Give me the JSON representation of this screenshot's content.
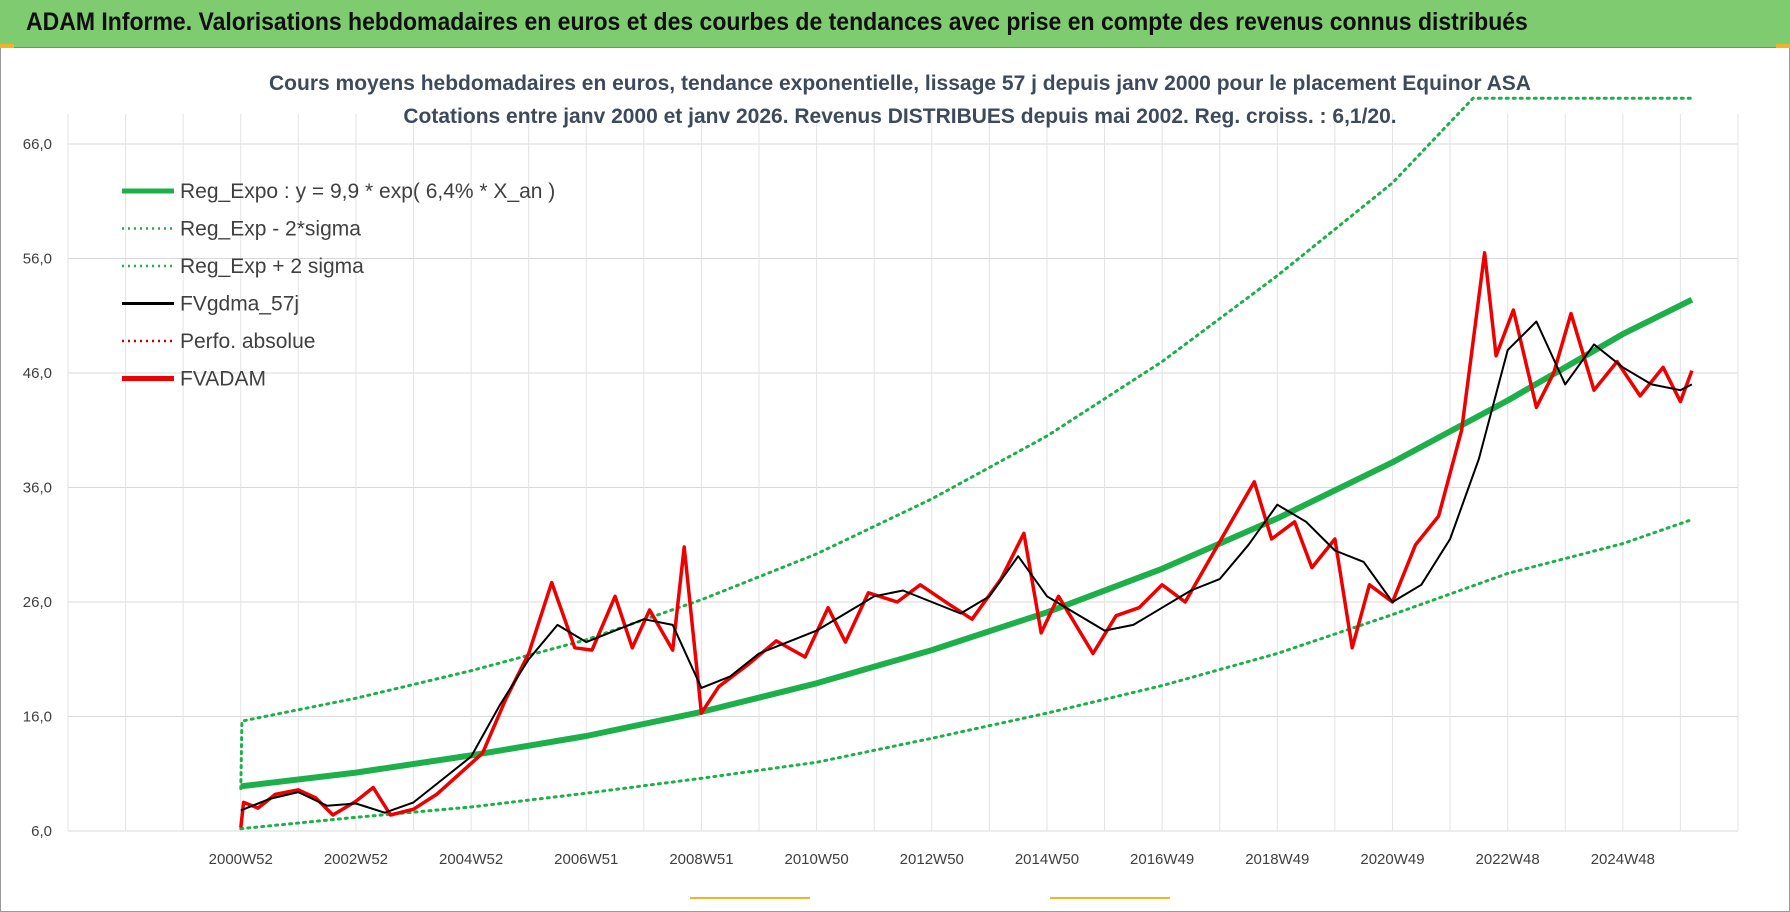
{
  "banner": {
    "title": "ADAM Informe. Valorisations hebdomadaires en euros et des courbes de tendances avec prise en compte des revenus connus distribués"
  },
  "colors": {
    "banner_bg": "#7ecb70",
    "trend": "#1db04a",
    "band": "#1db04a",
    "smoothed": "#000000",
    "price": "#ee0000",
    "perf": "#cc0000"
  },
  "chart_data": {
    "type": "line",
    "title_line1": "Cours moyens hebdomadaires en euros, tendance exponentielle, lissage 57 j depuis janv 2000  pour le placement Equinor ASA",
    "title_line2": "Cotations entre janv 2000 et janv 2026. Revenus DISTRIBUES depuis mai 2002. Reg. croiss. : 6,1/20.",
    "y_ticks": [
      "6,0",
      "16,0",
      "26,0",
      "36,0",
      "46,0",
      "56,0",
      "66,0"
    ],
    "ylim": [
      6,
      66
    ],
    "x_tick_labels": [
      "2000W52",
      "2002W52",
      "2004W52",
      "2006W51",
      "2008W51",
      "2010W50",
      "2012W50",
      "2014W50",
      "2016W49",
      "2018W49",
      "2020W49",
      "2022W48",
      "2024W48"
    ],
    "x_tick_years": [
      2000.0,
      2002.0,
      2004.0,
      2006.0,
      2008.0,
      2010.0,
      2012.0,
      2014.0,
      2016.0,
      2018.0,
      2020.0,
      2022.0,
      2024.0
    ],
    "xlim": [
      1997.0,
      2026.0
    ],
    "legend": [
      {
        "label": "Reg_Expo : y = 9,9 * exp( 6,4% *  X_an )",
        "style": "solid-thick",
        "color": "#1db04a"
      },
      {
        "label": "Reg_Exp - 2*sigma",
        "style": "dotted",
        "color": "#1db04a"
      },
      {
        "label": "Reg_Exp + 2 sigma",
        "style": "dotted",
        "color": "#1db04a"
      },
      {
        "label": "FVgdma_57j",
        "style": "solid",
        "color": "#000000"
      },
      {
        "label": "Perfo. absolue",
        "style": "dotted",
        "color": "#cc0000"
      },
      {
        "label": "FVADAM",
        "style": "solid-thick",
        "color": "#ee0000"
      }
    ],
    "trend_points": [
      {
        "x": 2000.0,
        "y": 9.9
      },
      {
        "x": 2002.0,
        "y": 11.1
      },
      {
        "x": 2004.0,
        "y": 12.6
      },
      {
        "x": 2006.0,
        "y": 14.3
      },
      {
        "x": 2008.0,
        "y": 16.4
      },
      {
        "x": 2010.0,
        "y": 18.9
      },
      {
        "x": 2012.0,
        "y": 21.8
      },
      {
        "x": 2014.0,
        "y": 25.1
      },
      {
        "x": 2016.0,
        "y": 28.9
      },
      {
        "x": 2018.0,
        "y": 33.3
      },
      {
        "x": 2020.0,
        "y": 38.2
      },
      {
        "x": 2022.0,
        "y": 43.6
      },
      {
        "x": 2024.0,
        "y": 49.4
      },
      {
        "x": 2025.2,
        "y": 52.4
      }
    ],
    "upper_band_points": [
      {
        "x": 2000.0,
        "y": 9.7
      },
      {
        "x": 2000.02,
        "y": 15.6
      },
      {
        "x": 2002.0,
        "y": 17.6
      },
      {
        "x": 2004.0,
        "y": 20.0
      },
      {
        "x": 2006.0,
        "y": 22.7
      },
      {
        "x": 2008.0,
        "y": 26.2
      },
      {
        "x": 2010.0,
        "y": 30.2
      },
      {
        "x": 2012.0,
        "y": 35.0
      },
      {
        "x": 2014.0,
        "y": 40.5
      },
      {
        "x": 2016.0,
        "y": 47.0
      },
      {
        "x": 2018.0,
        "y": 54.5
      },
      {
        "x": 2020.0,
        "y": 62.6
      },
      {
        "x": 2021.4,
        "y": 70.0
      },
      {
        "x": 2025.2,
        "y": 70.0
      }
    ],
    "lower_band_points": [
      {
        "x": 2000.0,
        "y": 6.2
      },
      {
        "x": 2002.0,
        "y": 7.2
      },
      {
        "x": 2004.0,
        "y": 8.1
      },
      {
        "x": 2006.0,
        "y": 9.3
      },
      {
        "x": 2008.0,
        "y": 10.6
      },
      {
        "x": 2010.0,
        "y": 12.0
      },
      {
        "x": 2012.0,
        "y": 14.1
      },
      {
        "x": 2014.0,
        "y": 16.3
      },
      {
        "x": 2016.0,
        "y": 18.7
      },
      {
        "x": 2018.0,
        "y": 21.5
      },
      {
        "x": 2020.0,
        "y": 24.9
      },
      {
        "x": 2022.0,
        "y": 28.5
      },
      {
        "x": 2024.0,
        "y": 31.1
      },
      {
        "x": 2025.2,
        "y": 33.2
      }
    ],
    "smoothed_points": [
      {
        "x": 2000.0,
        "y": 7.8
      },
      {
        "x": 2000.5,
        "y": 8.8
      },
      {
        "x": 2001.0,
        "y": 9.4
      },
      {
        "x": 2001.5,
        "y": 8.2
      },
      {
        "x": 2002.0,
        "y": 8.4
      },
      {
        "x": 2002.5,
        "y": 7.6
      },
      {
        "x": 2003.0,
        "y": 8.5
      },
      {
        "x": 2003.5,
        "y": 10.5
      },
      {
        "x": 2004.0,
        "y": 12.5
      },
      {
        "x": 2004.5,
        "y": 17.0
      },
      {
        "x": 2005.0,
        "y": 21.0
      },
      {
        "x": 2005.5,
        "y": 24.0
      },
      {
        "x": 2006.0,
        "y": 22.5
      },
      {
        "x": 2006.5,
        "y": 23.5
      },
      {
        "x": 2007.0,
        "y": 24.5
      },
      {
        "x": 2007.5,
        "y": 24.0
      },
      {
        "x": 2008.0,
        "y": 18.5
      },
      {
        "x": 2008.5,
        "y": 19.5
      },
      {
        "x": 2009.0,
        "y": 21.5
      },
      {
        "x": 2009.5,
        "y": 22.5
      },
      {
        "x": 2010.0,
        "y": 23.5
      },
      {
        "x": 2010.5,
        "y": 25.0
      },
      {
        "x": 2011.0,
        "y": 26.5
      },
      {
        "x": 2011.5,
        "y": 27.0
      },
      {
        "x": 2012.0,
        "y": 26.0
      },
      {
        "x": 2012.5,
        "y": 25.0
      },
      {
        "x": 2013.0,
        "y": 26.5
      },
      {
        "x": 2013.5,
        "y": 30.0
      },
      {
        "x": 2014.0,
        "y": 26.5
      },
      {
        "x": 2014.5,
        "y": 25.0
      },
      {
        "x": 2015.0,
        "y": 23.5
      },
      {
        "x": 2015.5,
        "y": 24.0
      },
      {
        "x": 2016.0,
        "y": 25.5
      },
      {
        "x": 2016.5,
        "y": 27.0
      },
      {
        "x": 2017.0,
        "y": 28.0
      },
      {
        "x": 2017.5,
        "y": 31.0
      },
      {
        "x": 2018.0,
        "y": 34.5
      },
      {
        "x": 2018.5,
        "y": 33.0
      },
      {
        "x": 2019.0,
        "y": 30.5
      },
      {
        "x": 2019.5,
        "y": 29.5
      },
      {
        "x": 2020.0,
        "y": 26.0
      },
      {
        "x": 2020.5,
        "y": 27.5
      },
      {
        "x": 2021.0,
        "y": 31.5
      },
      {
        "x": 2021.5,
        "y": 38.5
      },
      {
        "x": 2022.0,
        "y": 48.0
      },
      {
        "x": 2022.5,
        "y": 50.5
      },
      {
        "x": 2023.0,
        "y": 45.0
      },
      {
        "x": 2023.5,
        "y": 48.5
      },
      {
        "x": 2024.0,
        "y": 46.5
      },
      {
        "x": 2024.5,
        "y": 45.0
      },
      {
        "x": 2025.0,
        "y": 44.5
      },
      {
        "x": 2025.2,
        "y": 45.0
      }
    ],
    "price_points": [
      {
        "x": 2000.0,
        "y": 6.3
      },
      {
        "x": 2000.05,
        "y": 8.5
      },
      {
        "x": 2000.3,
        "y": 8.0
      },
      {
        "x": 2000.6,
        "y": 9.2
      },
      {
        "x": 2001.0,
        "y": 9.6
      },
      {
        "x": 2001.3,
        "y": 8.9
      },
      {
        "x": 2001.6,
        "y": 7.4
      },
      {
        "x": 2002.0,
        "y": 8.6
      },
      {
        "x": 2002.3,
        "y": 9.8
      },
      {
        "x": 2002.6,
        "y": 7.4
      },
      {
        "x": 2003.0,
        "y": 7.9
      },
      {
        "x": 2003.4,
        "y": 9.2
      },
      {
        "x": 2003.8,
        "y": 11.0
      },
      {
        "x": 2004.2,
        "y": 12.8
      },
      {
        "x": 2004.6,
        "y": 17.5
      },
      {
        "x": 2005.0,
        "y": 21.5
      },
      {
        "x": 2005.4,
        "y": 27.7
      },
      {
        "x": 2005.8,
        "y": 22.0
      },
      {
        "x": 2006.1,
        "y": 21.8
      },
      {
        "x": 2006.5,
        "y": 26.5
      },
      {
        "x": 2006.8,
        "y": 22.0
      },
      {
        "x": 2007.1,
        "y": 25.3
      },
      {
        "x": 2007.5,
        "y": 21.8
      },
      {
        "x": 2007.7,
        "y": 30.8
      },
      {
        "x": 2008.0,
        "y": 16.3
      },
      {
        "x": 2008.3,
        "y": 18.6
      },
      {
        "x": 2008.8,
        "y": 20.5
      },
      {
        "x": 2009.3,
        "y": 22.6
      },
      {
        "x": 2009.8,
        "y": 21.2
      },
      {
        "x": 2010.2,
        "y": 25.5
      },
      {
        "x": 2010.5,
        "y": 22.5
      },
      {
        "x": 2010.9,
        "y": 26.8
      },
      {
        "x": 2011.4,
        "y": 26.0
      },
      {
        "x": 2011.8,
        "y": 27.5
      },
      {
        "x": 2012.3,
        "y": 25.8
      },
      {
        "x": 2012.7,
        "y": 24.5
      },
      {
        "x": 2013.2,
        "y": 28.0
      },
      {
        "x": 2013.6,
        "y": 32.0
      },
      {
        "x": 2013.9,
        "y": 23.3
      },
      {
        "x": 2014.2,
        "y": 26.5
      },
      {
        "x": 2014.5,
        "y": 24.0
      },
      {
        "x": 2014.8,
        "y": 21.5
      },
      {
        "x": 2015.2,
        "y": 24.8
      },
      {
        "x": 2015.6,
        "y": 25.5
      },
      {
        "x": 2016.0,
        "y": 27.5
      },
      {
        "x": 2016.4,
        "y": 26.0
      },
      {
        "x": 2016.8,
        "y": 29.5
      },
      {
        "x": 2017.2,
        "y": 33.0
      },
      {
        "x": 2017.6,
        "y": 36.5
      },
      {
        "x": 2017.9,
        "y": 31.5
      },
      {
        "x": 2018.3,
        "y": 33.0
      },
      {
        "x": 2018.6,
        "y": 29.0
      },
      {
        "x": 2019.0,
        "y": 31.5
      },
      {
        "x": 2019.3,
        "y": 22.0
      },
      {
        "x": 2019.6,
        "y": 27.5
      },
      {
        "x": 2020.0,
        "y": 26.0
      },
      {
        "x": 2020.4,
        "y": 31.0
      },
      {
        "x": 2020.8,
        "y": 33.5
      },
      {
        "x": 2021.2,
        "y": 41.0
      },
      {
        "x": 2021.6,
        "y": 56.5
      },
      {
        "x": 2021.8,
        "y": 47.5
      },
      {
        "x": 2022.1,
        "y": 51.5
      },
      {
        "x": 2022.5,
        "y": 43.0
      },
      {
        "x": 2022.8,
        "y": 46.0
      },
      {
        "x": 2023.1,
        "y": 51.2
      },
      {
        "x": 2023.5,
        "y": 44.5
      },
      {
        "x": 2023.9,
        "y": 47.0
      },
      {
        "x": 2024.3,
        "y": 44.0
      },
      {
        "x": 2024.7,
        "y": 46.5
      },
      {
        "x": 2025.0,
        "y": 43.5
      },
      {
        "x": 2025.2,
        "y": 46.2
      }
    ]
  }
}
